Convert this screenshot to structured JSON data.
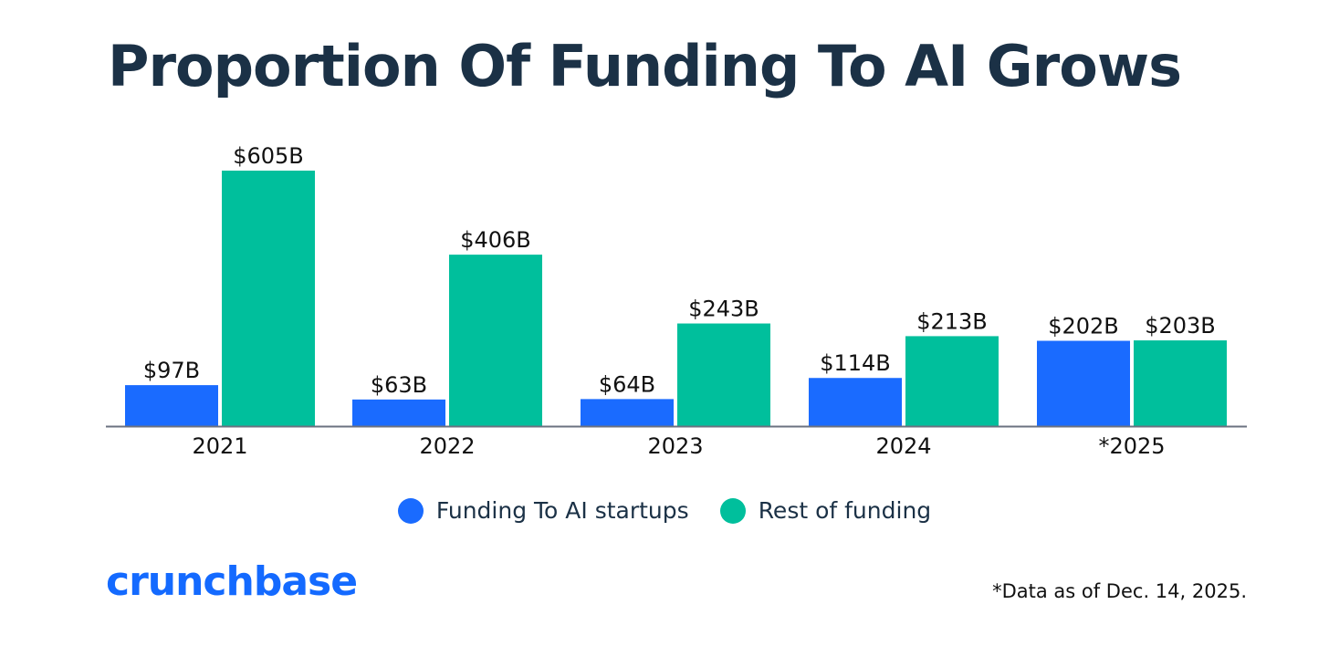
{
  "title": "Proportion Of Funding To AI Grows",
  "chart_data": {
    "type": "bar",
    "categories": [
      "2021",
      "2022",
      "2023",
      "2024",
      "*2025"
    ],
    "series": [
      {
        "name": "Funding To AI startups",
        "color": "#1a6bff",
        "values": [
          97,
          63,
          64,
          114,
          202
        ],
        "labels": [
          "$97B",
          "$63B",
          "$64B",
          "$114B",
          "$202B"
        ]
      },
      {
        "name": "Rest of funding",
        "color": "#00bf9c",
        "values": [
          605,
          406,
          243,
          213,
          203
        ],
        "labels": [
          "$605B",
          "$406B",
          "$243B",
          "$213B",
          "$203B"
        ]
      }
    ],
    "ylim": [
      0,
      605
    ],
    "grid": false,
    "legend_position": "bottom-center",
    "baseline_color": "#6b7280"
  },
  "brand": {
    "logo_text": "crunchbase",
    "logo_color": "#146aff"
  },
  "footnote": "*Data as of Dec. 14, 2025."
}
